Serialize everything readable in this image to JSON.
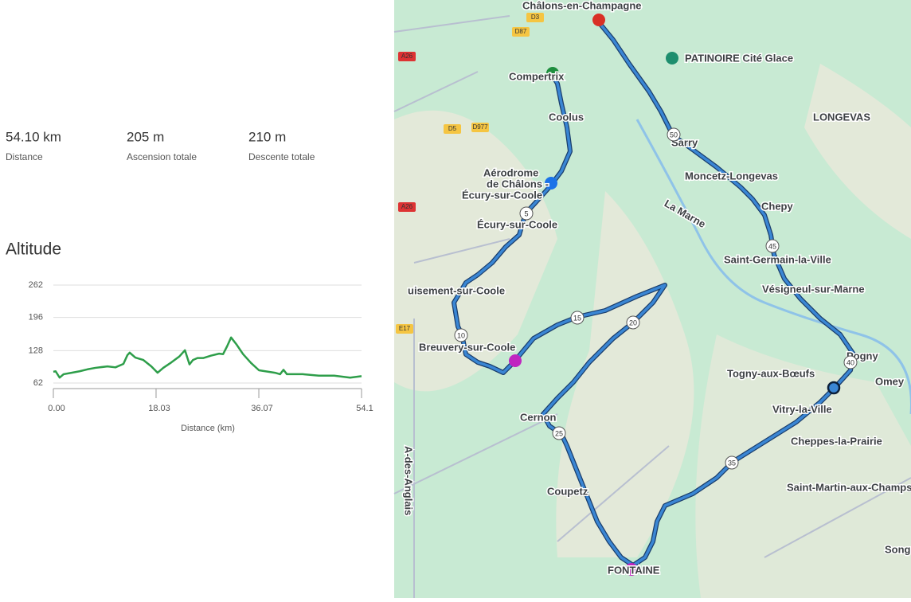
{
  "stats": [
    {
      "value": "54.10 km",
      "label": "Distance"
    },
    {
      "value": "205 m",
      "label": "Ascension totale"
    },
    {
      "value": "210 m",
      "label": "Descente totale"
    }
  ],
  "chart_data": {
    "type": "line",
    "title": "Altitude",
    "xlabel": "Distance (km)",
    "x": [
      0.0,
      0.4,
      1.1,
      1.8,
      3.2,
      4.6,
      6.0,
      7.4,
      9.5,
      10.9,
      12.3,
      13.0,
      13.4,
      14.4,
      15.8,
      17.2,
      18.3,
      19.3,
      20.7,
      22.1,
      23.1,
      23.9,
      24.5,
      25.3,
      26.3,
      27.7,
      29.1,
      29.8,
      30.5,
      31.2,
      32.2,
      33.3,
      34.7,
      36.1,
      38.9,
      39.8,
      40.4,
      41.0,
      43.8,
      46.6,
      49.3,
      52.1,
      54.1
    ],
    "series": [
      {
        "color": "#2e9e4a",
        "values": [
          85,
          86,
          73,
          80,
          83,
          86,
          90,
          93,
          96,
          94,
          101,
          119,
          124,
          114,
          109,
          96,
          83,
          93,
          104,
          116,
          129,
          100,
          109,
          113,
          113,
          118,
          122,
          121,
          137,
          155,
          140,
          121,
          103,
          88,
          83,
          80,
          89,
          80,
          80,
          77,
          77,
          73,
          76
        ]
      }
    ],
    "xlim": [
      0,
      54.1
    ],
    "ylim": [
      62,
      262
    ],
    "xticks": [
      {
        "value": 0,
        "label": "0.00"
      },
      18.03,
      36.07,
      54.1
    ],
    "yticks": [
      62,
      128,
      196,
      262
    ],
    "grid": true
  },
  "map": {
    "labels": [
      "Châlons-en-Champagne",
      "PATINOIRE Cité Glace",
      "Compertrix",
      "Coolus",
      "Aérodrome",
      "de Châlons -",
      "Écury-sur-Coole",
      "Écury-sur-Coole",
      "Sarry",
      "Moncetz-Longevas",
      "Chepy",
      "LONGEVAS",
      "Saint-Germain-la-Ville",
      "Vésigneul-sur-Marne",
      "uisement-sur-Coole",
      "Breuvery-sur-Coole",
      "Togny-aux-Bœufs",
      "Pogny",
      "Omey",
      "Vitry-la-Ville",
      "Cheppes-la-Prairie",
      "Saint-Martin-aux-Champs",
      "Cernon",
      "Coupetz",
      "FONTAINE",
      "Song",
      "La Marne",
      "A-des-Anglais"
    ],
    "roads": [
      "A26",
      "D5",
      "D977",
      "D87",
      "D3",
      "A26",
      "E17"
    ],
    "markers": [
      "5",
      "10",
      "15",
      "20",
      "25",
      "35",
      "40",
      "45",
      "50"
    ]
  }
}
